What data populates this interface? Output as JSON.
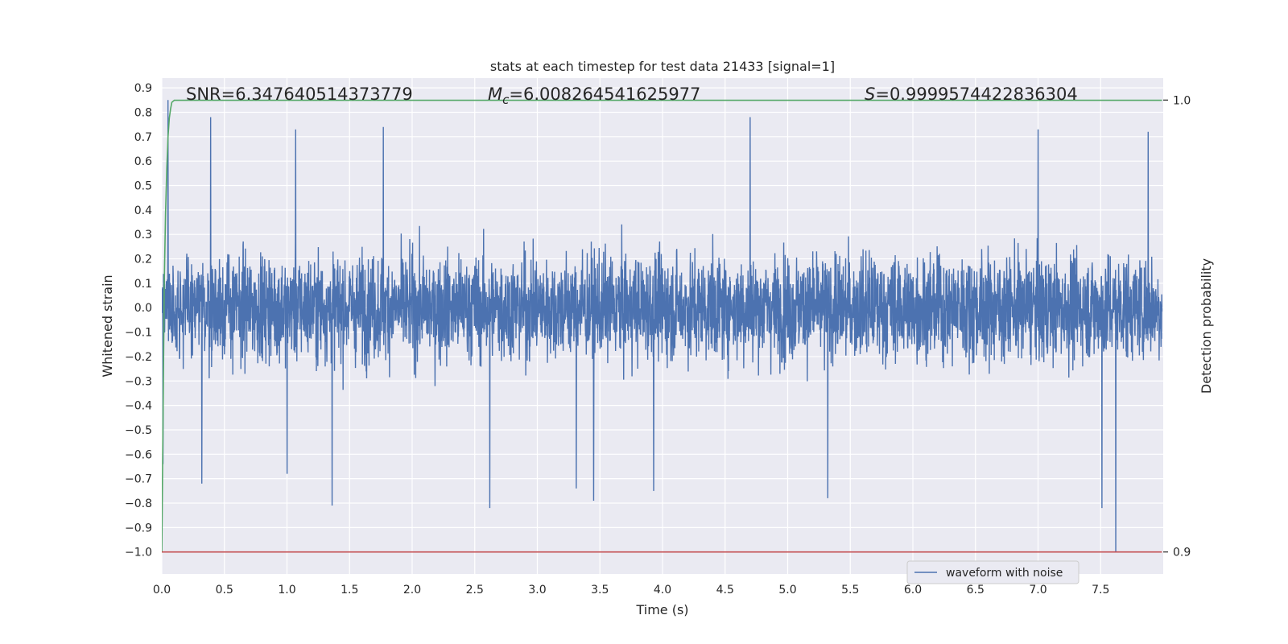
{
  "chart_data": {
    "type": "line",
    "title": "stats at each timestep for test data 21433 [signal=1]",
    "xlabel": "Time (s)",
    "ylabel": "Whitened strain",
    "y2label": "Detection probability",
    "xlim": [
      0.0,
      8.0
    ],
    "ylim": [
      -1.09,
      0.94
    ],
    "y2lim": [
      0.9,
      1.0
    ],
    "grid": true,
    "x_ticks": [
      "0.0",
      "0.5",
      "1.0",
      "1.5",
      "2.0",
      "2.5",
      "3.0",
      "3.5",
      "4.0",
      "4.5",
      "5.0",
      "5.5",
      "6.0",
      "6.5",
      "7.0",
      "7.5"
    ],
    "y_ticks": [
      "0.9",
      "0.8",
      "0.7",
      "0.6",
      "0.5",
      "0.4",
      "0.3",
      "0.2",
      "0.1",
      "0.0",
      "−0.1",
      "−0.2",
      "−0.3",
      "−0.4",
      "−0.5",
      "−0.6",
      "−0.7",
      "−0.8",
      "−0.9",
      "−1.0"
    ],
    "y2_ticks": [
      "1.0",
      "0.9"
    ],
    "annotations": {
      "snr": "SNR=6.347640514373779",
      "mc_prefix": "M",
      "mc_sub": "c",
      "mc_value": "=6.008264541625977",
      "s_prefix": "S",
      "s_value": "=0.9999574422836304"
    },
    "legend": {
      "position": "lower-right",
      "label": "waveform with noise"
    },
    "series": [
      {
        "name": "waveform with noise",
        "color": "#4c72b0",
        "axis": "left",
        "kind": "noise",
        "duration_s": 7.99,
        "typical_amplitude": [
          -0.45,
          0.5
        ],
        "extremes": [
          {
            "x": 0.05,
            "y": 0.85
          },
          {
            "x": 0.01,
            "y": -0.64
          },
          {
            "x": 0.32,
            "y": -0.72
          },
          {
            "x": 0.39,
            "y": 0.78
          },
          {
            "x": 1.0,
            "y": -0.68
          },
          {
            "x": 1.07,
            "y": 0.73
          },
          {
            "x": 1.36,
            "y": -0.81
          },
          {
            "x": 1.77,
            "y": 0.74
          },
          {
            "x": 2.62,
            "y": -0.82
          },
          {
            "x": 3.31,
            "y": -0.74
          },
          {
            "x": 3.45,
            "y": -0.79
          },
          {
            "x": 3.93,
            "y": -0.75
          },
          {
            "x": 4.7,
            "y": 0.78
          },
          {
            "x": 5.32,
            "y": -0.78
          },
          {
            "x": 7.0,
            "y": 0.73
          },
          {
            "x": 7.51,
            "y": -0.82
          },
          {
            "x": 7.62,
            "y": -1.0
          },
          {
            "x": 7.88,
            "y": 0.72
          }
        ]
      },
      {
        "name": "",
        "color": "#55a868",
        "axis": "right",
        "x": [
          0.0,
          0.01,
          0.02,
          0.03,
          0.04,
          0.05,
          0.06,
          0.07,
          0.08,
          0.1,
          0.15,
          7.99
        ],
        "y": [
          0.9,
          0.93,
          0.96,
          0.975,
          0.985,
          0.992,
          0.996,
          0.998,
          0.9995,
          0.99996,
          0.99996,
          0.99996
        ]
      },
      {
        "name": "",
        "color": "#c44e52",
        "axis": "right",
        "x": [
          0.0,
          7.99
        ],
        "y": [
          0.9,
          0.9
        ]
      }
    ]
  }
}
